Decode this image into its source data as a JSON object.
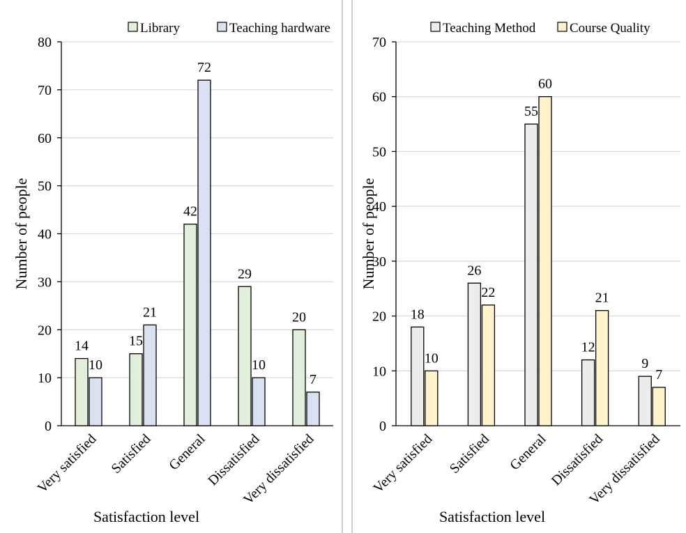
{
  "chart_data": [
    {
      "type": "bar",
      "title": "",
      "xlabel": "Satisfaction level",
      "ylabel": "Number of people",
      "ylim": [
        0,
        80
      ],
      "yticks": [
        0,
        10,
        20,
        30,
        40,
        50,
        60,
        70,
        80
      ],
      "categories": [
        "Very satisfied",
        "Satisfied",
        "General",
        "Dissatisfied",
        "Very dissatisfied"
      ],
      "grid": true,
      "legend_position": "top-right",
      "series": [
        {
          "name": "Library",
          "values": [
            14,
            15,
            42,
            29,
            20
          ],
          "color": "#e2efda"
        },
        {
          "name": "Teaching hardware",
          "values": [
            10,
            21,
            72,
            10,
            7
          ],
          "color": "#d9e1f2"
        }
      ]
    },
    {
      "type": "bar",
      "title": "",
      "xlabel": "Satisfaction level",
      "ylabel": "Number of people",
      "ylim": [
        0,
        70
      ],
      "yticks": [
        0,
        10,
        20,
        30,
        40,
        50,
        60,
        70
      ],
      "categories": [
        "Very satisfied",
        "Satisfied",
        "General",
        "Dissatisfied",
        "Very dissatisfied"
      ],
      "grid": true,
      "legend_position": "top-right",
      "series": [
        {
          "name": "Teaching Method",
          "values": [
            18,
            26,
            55,
            12,
            9
          ],
          "color": "#ededed"
        },
        {
          "name": "Course Quality",
          "values": [
            10,
            22,
            60,
            21,
            7
          ],
          "color": "#fff2cc"
        }
      ]
    }
  ]
}
